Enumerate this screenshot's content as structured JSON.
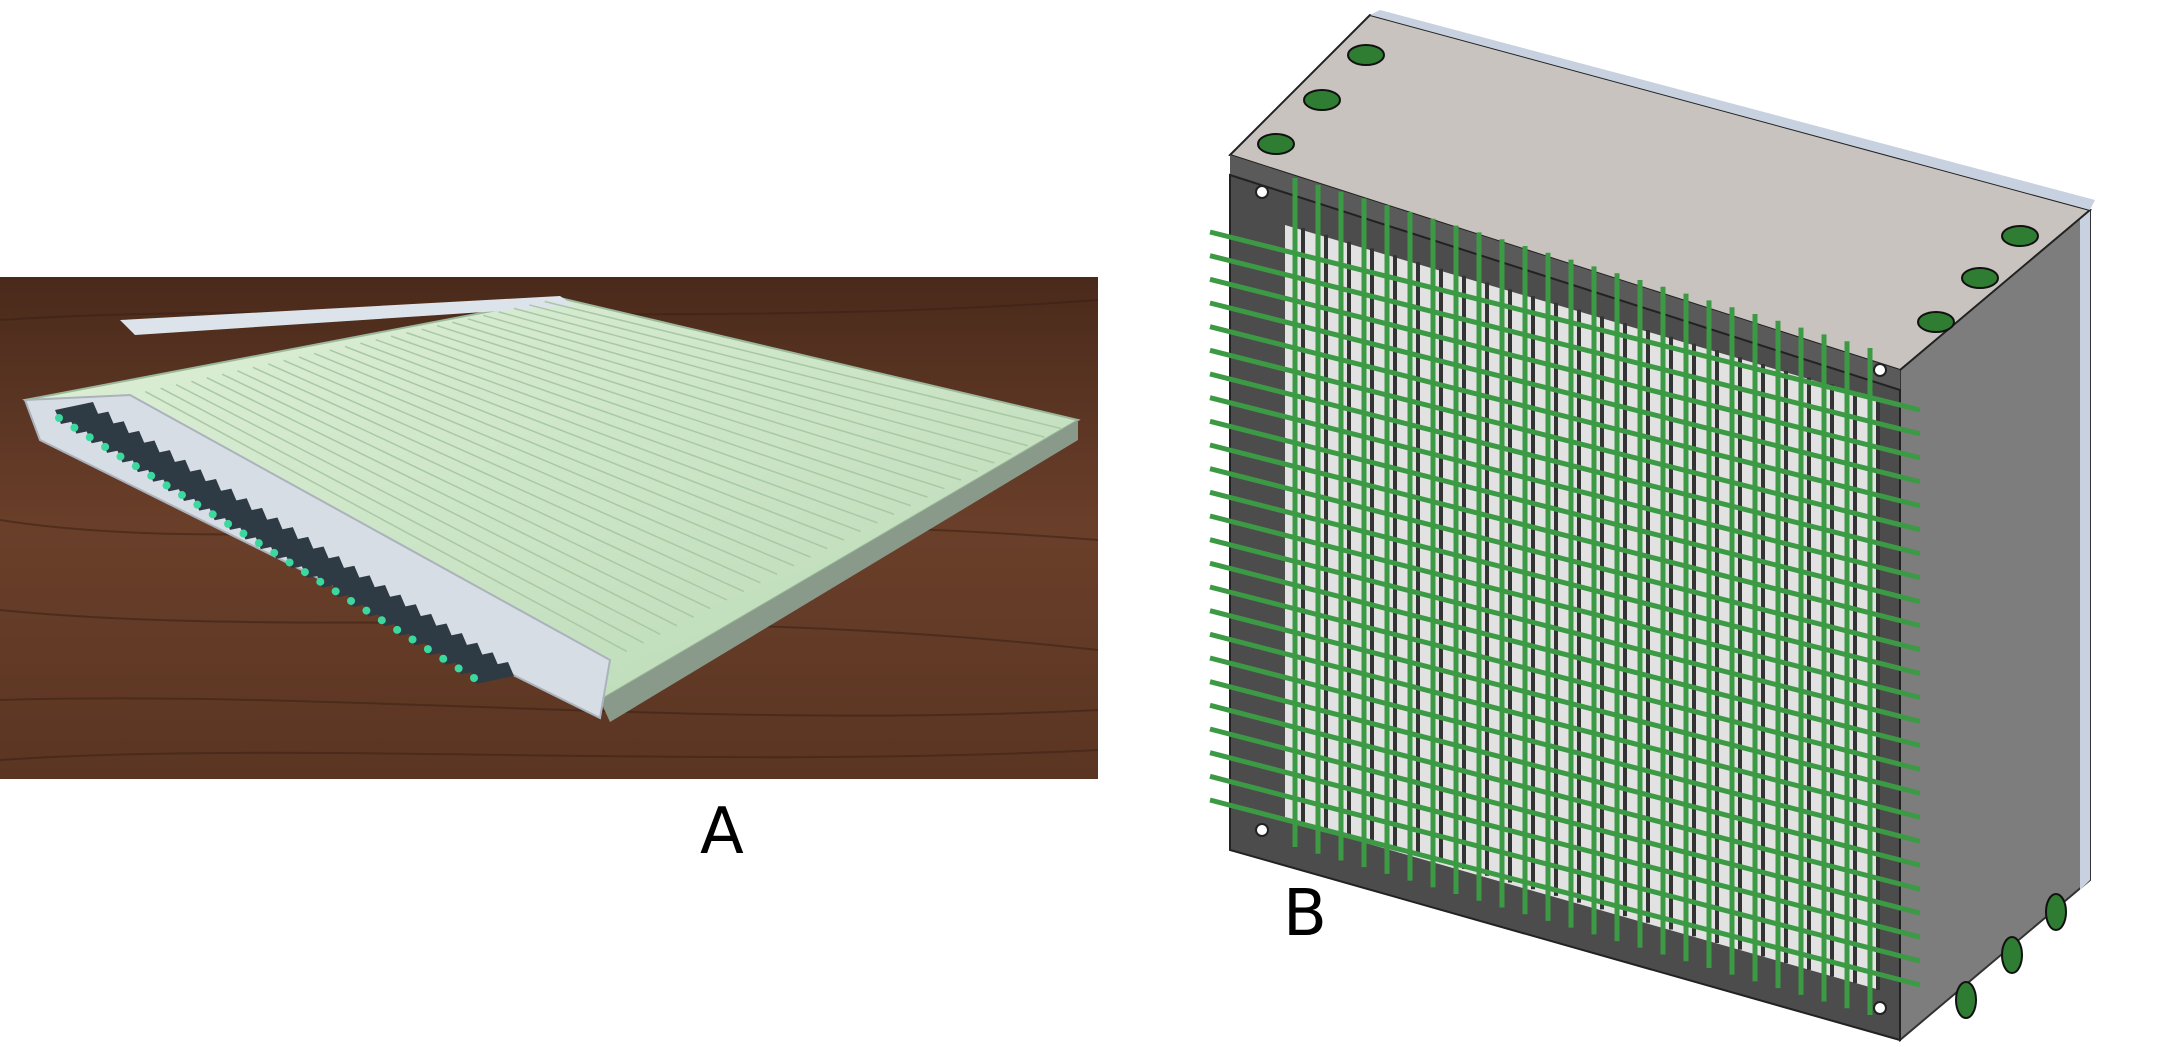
{
  "figure": {
    "panel_a": {
      "label": "A"
    },
    "panel_b": {
      "label": "B"
    }
  },
  "colors": {
    "wood": "#5b3422",
    "scintillator_plate": "#cfe6c8",
    "fiber_green": "#2f8f3a",
    "frame_grey": "#4c4c4c",
    "top_plate": "#c8c3bf",
    "side_face": "#7a7a7a"
  }
}
